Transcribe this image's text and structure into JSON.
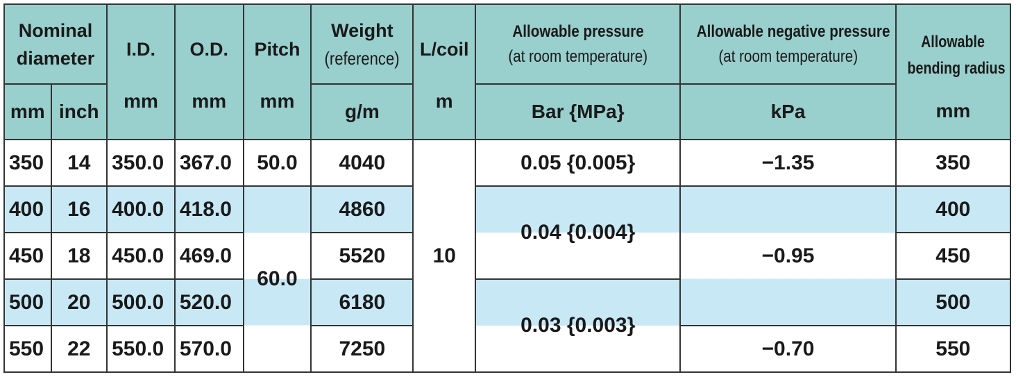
{
  "headers": {
    "nominal_diameter": "Nominal diameter",
    "id": "I.D.",
    "od": "O.D.",
    "pitch": "Pitch",
    "weight": "Weight",
    "weight_note": "(reference)",
    "l_coil": "L/coil",
    "allowable_pressure": "Allowable pressure",
    "allowable_pressure_note": "(at room temperature)",
    "allowable_negative_pressure": "Allowable negative pressure",
    "allowable_negative_pressure_note": "(at room temperature)",
    "allowable_bending_radius_l1": "Allowable",
    "allowable_bending_radius_l2": "bending radius"
  },
  "units": {
    "nominal_mm": "mm",
    "nominal_inch": "inch",
    "id": "mm",
    "od": "mm",
    "pitch": "mm",
    "weight": "g/m",
    "l_coil": "m",
    "pressure": "Bar {MPa}",
    "negative_pressure": "kPa",
    "bending_radius": "mm"
  },
  "rows": [
    {
      "mm": "350",
      "inch": "14",
      "id": "350.0",
      "od": "367.0",
      "weight": "4040",
      "radius": "350"
    },
    {
      "mm": "400",
      "inch": "16",
      "id": "400.0",
      "od": "418.0",
      "weight": "4860",
      "radius": "400"
    },
    {
      "mm": "450",
      "inch": "18",
      "id": "450.0",
      "od": "469.0",
      "weight": "5520",
      "radius": "450"
    },
    {
      "mm": "500",
      "inch": "20",
      "id": "500.0",
      "od": "520.0",
      "weight": "6180",
      "radius": "500"
    },
    {
      "mm": "550",
      "inch": "22",
      "id": "550.0",
      "od": "570.0",
      "weight": "7250",
      "radius": "550"
    }
  ],
  "merged": {
    "pitch_row1": "50.0",
    "pitch_rows2_5": "60.0",
    "l_coil": "10",
    "pressure_row1": "0.05 {0.005}",
    "pressure_rows2_3": "0.04 {0.004}",
    "pressure_rows4_5": "0.03 {0.003}",
    "negative_row1": "−1.35",
    "negative_rows2_4": "−0.95",
    "negative_row5": "−0.70"
  },
  "colors": {
    "header": "#99cfcd",
    "stripe_blue": "#c8e8f5",
    "border": "#333333"
  }
}
